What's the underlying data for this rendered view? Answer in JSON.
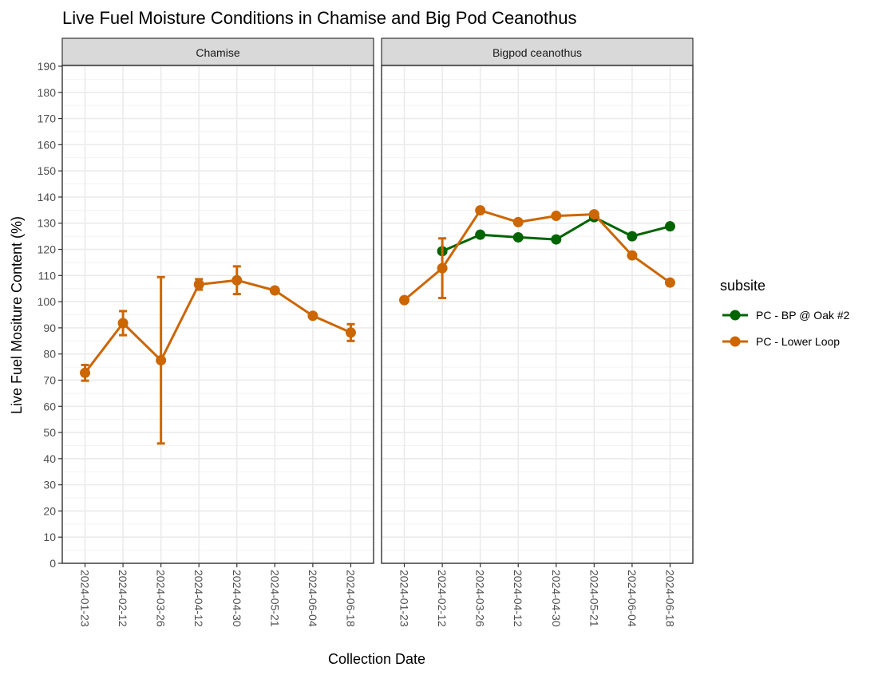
{
  "chart_data": {
    "type": "line",
    "title": "Live Fuel Moisture Conditions in Chamise and Big Pod Ceanothus",
    "xlabel": "Collection Date",
    "ylabel": "Live Fuel Mositure Content (%)",
    "ylim": [
      0,
      190
    ],
    "yticks": [
      0,
      10,
      20,
      30,
      40,
      50,
      60,
      70,
      80,
      90,
      100,
      110,
      120,
      130,
      140,
      150,
      160,
      170,
      180,
      190
    ],
    "categories": [
      "2024-01-23",
      "2024-02-12",
      "2024-03-26",
      "2024-04-12",
      "2024-04-30",
      "2024-05-21",
      "2024-06-04",
      "2024-06-18"
    ],
    "grid": true,
    "legend": {
      "title": "subsite",
      "placement": "right",
      "entries": [
        {
          "name": "PC - BP @ Oak #2",
          "color": "#006400"
        },
        {
          "name": "PC - Lower Loop",
          "color": "#CC6600"
        }
      ]
    },
    "panels": [
      {
        "strip": "Chamise",
        "series": [
          {
            "name": "PC - Lower Loop",
            "color": "#CC6600",
            "values": [
              72.8,
              91.8,
              77.6,
              106.6,
              108.2,
              104.3,
              94.6,
              88.2
            ],
            "error_low": [
              69.8,
              87.2,
              45.8,
              104.6,
              102.9,
              104.3,
              94.6,
              85.0
            ],
            "error_high": [
              75.8,
              96.4,
              109.4,
              108.6,
              113.5,
              104.3,
              94.6,
              91.4
            ]
          }
        ]
      },
      {
        "strip": "Bigpod ceanothus",
        "series": [
          {
            "name": "PC - BP @ Oak #2",
            "color": "#006400",
            "values": [
              null,
              119.3,
              125.6,
              124.6,
              123.8,
              132.3,
              125.0,
              128.8
            ],
            "error_low": [
              null,
              null,
              null,
              null,
              null,
              null,
              null,
              null
            ],
            "error_high": [
              null,
              null,
              null,
              null,
              null,
              null,
              null,
              null
            ]
          },
          {
            "name": "PC - Lower Loop",
            "color": "#CC6600",
            "values": [
              100.6,
              112.8,
              134.9,
              130.4,
              132.8,
              133.4,
              117.7,
              107.3
            ],
            "error_low": [
              null,
              101.4,
              null,
              null,
              null,
              null,
              null,
              null
            ],
            "error_high": [
              null,
              124.2,
              null,
              null,
              null,
              null,
              null,
              null
            ]
          }
        ]
      }
    ]
  },
  "colors": {
    "strip_bg": "#d9d9d9",
    "grid_major": "#ebebeb",
    "grid_minor": "#f3f3f3",
    "panel_border": "#333333"
  }
}
